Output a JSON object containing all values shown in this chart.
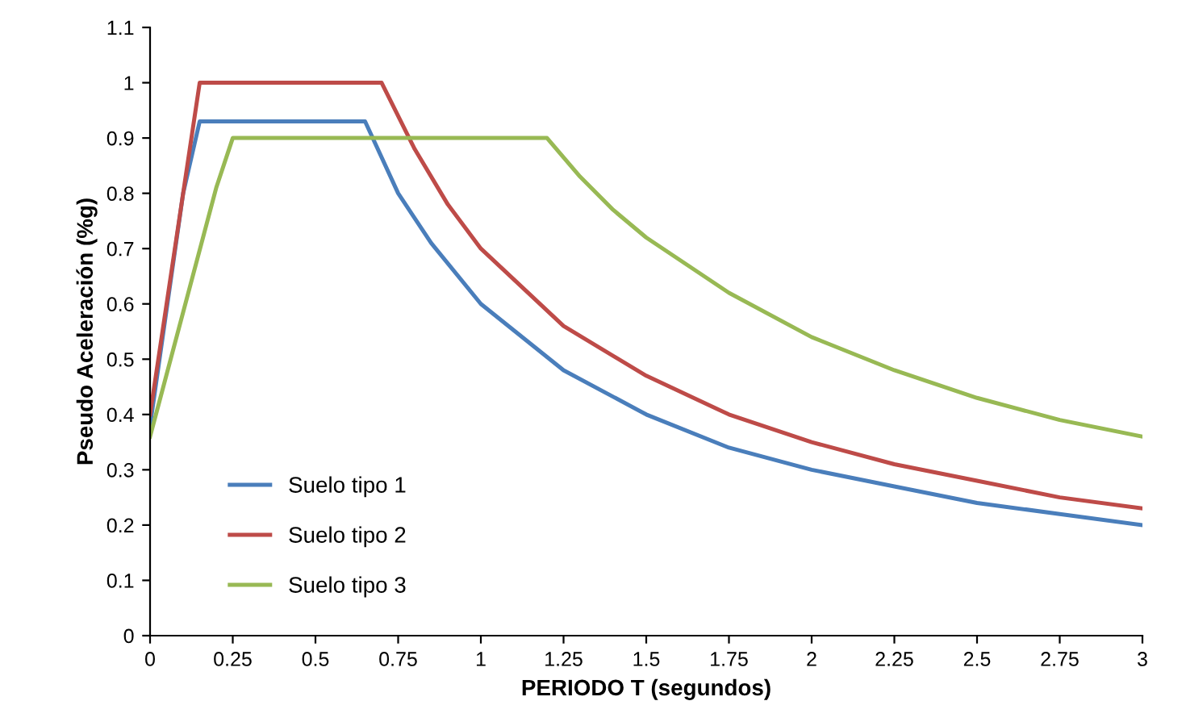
{
  "chart_data": {
    "type": "line",
    "xlabel": "PERIODO T (segundos)",
    "ylabel": "Pseudo Aceleración (%g)",
    "series": [
      {
        "name": "Suelo tipo 1",
        "color": "#4a7ebb",
        "x": [
          0,
          0.1,
          0.15,
          0.65,
          0.75,
          0.85,
          1,
          1.25,
          1.5,
          1.75,
          2,
          2.25,
          2.5,
          2.75,
          3
        ],
        "values": [
          0.38,
          0.8,
          0.93,
          0.93,
          0.8,
          0.71,
          0.6,
          0.48,
          0.4,
          0.34,
          0.3,
          0.27,
          0.24,
          0.22,
          0.2
        ]
      },
      {
        "name": "Suelo tipo 2",
        "color": "#be4b48",
        "x": [
          0,
          0.1,
          0.15,
          0.7,
          0.8,
          0.9,
          1,
          1.25,
          1.5,
          1.75,
          2,
          2.25,
          2.5,
          2.75,
          3
        ],
        "values": [
          0.4,
          0.8,
          1,
          1,
          0.88,
          0.78,
          0.7,
          0.56,
          0.47,
          0.4,
          0.35,
          0.31,
          0.28,
          0.25,
          0.23
        ]
      },
      {
        "name": "Suelo tipo 3",
        "color": "#98b954",
        "x": [
          0,
          0.2,
          0.25,
          1.2,
          1.3,
          1.4,
          1.5,
          1.75,
          2,
          2.25,
          2.5,
          2.75,
          3
        ],
        "values": [
          0.36,
          0.81,
          0.9,
          0.9,
          0.83,
          0.77,
          0.72,
          0.62,
          0.54,
          0.48,
          0.43,
          0.39,
          0.36
        ]
      }
    ],
    "xlim": [
      0,
      3
    ],
    "xticks": [
      0,
      0.25,
      0.5,
      0.75,
      1,
      1.25,
      1.5,
      1.75,
      2,
      2.25,
      2.5,
      2.75,
      3
    ],
    "ylim": [
      0,
      1.1
    ],
    "yticks": [
      0,
      0.1,
      0.2,
      0.3,
      0.4,
      0.5,
      0.6,
      0.7,
      0.8,
      0.9,
      1,
      1.1
    ],
    "grid": false,
    "legend": "bottom left",
    "marker": "none",
    "line_style": "solid"
  }
}
